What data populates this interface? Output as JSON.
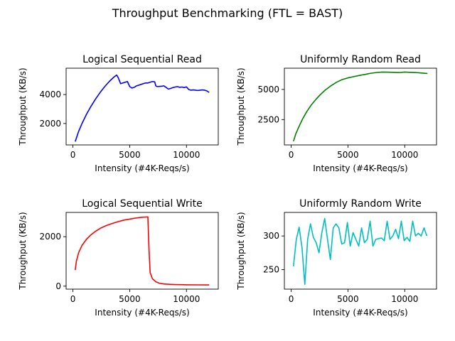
{
  "figure": {
    "suptitle": "Throughput Benchmarking (FTL = BAST)"
  },
  "chart_data": [
    {
      "type": "line",
      "title": "Logical Sequential Read",
      "xlabel": "Intensity (#4K-Reqs/s)",
      "ylabel": "Throughput (KB/s)",
      "xlim": [
        -600,
        12800
      ],
      "ylim": [
        520,
        5820
      ],
      "xticks": [
        0,
        5000,
        10000
      ],
      "yticks": [
        2000,
        4000
      ],
      "color": "#0000ff",
      "series": [
        {
          "x": [
            200,
            500,
            800,
            1200,
            1600,
            2000,
            2400,
            2800,
            3200,
            3600,
            3850,
            4000,
            4200,
            4400,
            4600,
            4800,
            5000,
            5200,
            5400,
            5600,
            5800,
            6000,
            6200,
            6400,
            6600,
            6800,
            7000,
            7200,
            7300,
            7400,
            7600,
            7800,
            8000,
            8200,
            8400,
            8600,
            8800,
            9000,
            9200,
            9400,
            9600,
            9800,
            10000,
            10200,
            10400,
            10600,
            10800,
            11000,
            11200,
            11400,
            11600,
            11800,
            12000
          ],
          "y": [
            750,
            1450,
            2000,
            2650,
            3200,
            3700,
            4150,
            4550,
            4900,
            5200,
            5350,
            5150,
            4750,
            4800,
            4850,
            4900,
            4550,
            4450,
            4500,
            4600,
            4650,
            4700,
            4750,
            4800,
            4800,
            4850,
            4900,
            4880,
            4600,
            4550,
            4560,
            4570,
            4600,
            4500,
            4380,
            4420,
            4480,
            4520,
            4550,
            4500,
            4520,
            4480,
            4530,
            4350,
            4300,
            4320,
            4300,
            4280,
            4300,
            4320,
            4300,
            4250,
            4150
          ]
        }
      ]
    },
    {
      "type": "line",
      "title": "Uniformly Random Read",
      "xlabel": "Intensity (#4K-Reqs/s)",
      "ylabel": "Throughput (KB/s)",
      "xlim": [
        -600,
        12800
      ],
      "ylim": [
        400,
        6760
      ],
      "xticks": [
        0,
        5000,
        10000
      ],
      "yticks": [
        2500,
        5000
      ],
      "color": "#008000",
      "series": [
        {
          "x": [
            200,
            400,
            700,
            1000,
            1400,
            1800,
            2200,
            2600,
            3000,
            3500,
            4000,
            4500,
            5000,
            5500,
            6000,
            6500,
            7000,
            7500,
            8000,
            8500,
            9000,
            9500,
            10000,
            10500,
            11000,
            11500,
            12000
          ],
          "y": [
            700,
            1300,
            1950,
            2550,
            3200,
            3750,
            4200,
            4600,
            4950,
            5300,
            5600,
            5820,
            5960,
            6060,
            6160,
            6240,
            6340,
            6400,
            6440,
            6430,
            6420,
            6400,
            6440,
            6420,
            6400,
            6360,
            6320
          ]
        }
      ]
    },
    {
      "type": "line",
      "title": "Logical Sequential Write",
      "xlabel": "Intensity (#4K-Reqs/s)",
      "ylabel": "Throughput (KB/s)",
      "xlim": [
        -600,
        12800
      ],
      "ylim": [
        -120,
        2980
      ],
      "xticks": [
        0,
        5000,
        10000
      ],
      "yticks": [
        0,
        2000
      ],
      "color": "#ff0000",
      "series": [
        {
          "x": [
            200,
            300,
            500,
            800,
            1200,
            1600,
            2000,
            2500,
            3000,
            3500,
            4000,
            4500,
            5000,
            5500,
            6000,
            6300,
            6600,
            6700,
            6800,
            7000,
            7300,
            7600,
            8000,
            8500,
            9000,
            9500,
            10000,
            11000,
            12000
          ],
          "y": [
            650,
            1000,
            1350,
            1650,
            1900,
            2080,
            2220,
            2360,
            2460,
            2540,
            2610,
            2670,
            2710,
            2750,
            2780,
            2790,
            2800,
            1500,
            550,
            300,
            180,
            120,
            90,
            75,
            65,
            60,
            55,
            52,
            50
          ]
        }
      ]
    },
    {
      "type": "line",
      "title": "Uniformly Random Write",
      "xlabel": "Intensity (#4K-Reqs/s)",
      "ylabel": "Throughput (KB/s)",
      "xlim": [
        -600,
        12800
      ],
      "ylim": [
        221,
        335
      ],
      "xticks": [
        0,
        5000,
        10000
      ],
      "yticks": [
        250,
        300
      ],
      "color": "#00bfbf",
      "series": [
        {
          "x": [
            200,
            450,
            700,
            950,
            1200,
            1450,
            1700,
            1950,
            2200,
            2450,
            2700,
            2950,
            3200,
            3450,
            3700,
            3950,
            4200,
            4450,
            4700,
            4950,
            5200,
            5450,
            5700,
            5950,
            6200,
            6450,
            6700,
            6950,
            7200,
            7450,
            7700,
            7950,
            8200,
            8450,
            8700,
            8950,
            9200,
            9450,
            9700,
            9950,
            10200,
            10450,
            10700,
            10950,
            11200,
            11450,
            11700,
            11950
          ],
          "y": [
            255,
            295,
            313,
            283,
            228,
            295,
            318,
            298,
            290,
            275,
            305,
            326,
            295,
            265,
            312,
            318,
            312,
            288,
            290,
            320,
            285,
            305,
            295,
            285,
            312,
            290,
            295,
            322,
            285,
            295,
            296,
            297,
            293,
            322,
            295,
            300,
            310,
            296,
            322,
            293,
            298,
            292,
            322,
            300,
            304,
            300,
            312,
            300
          ]
        }
      ]
    }
  ]
}
